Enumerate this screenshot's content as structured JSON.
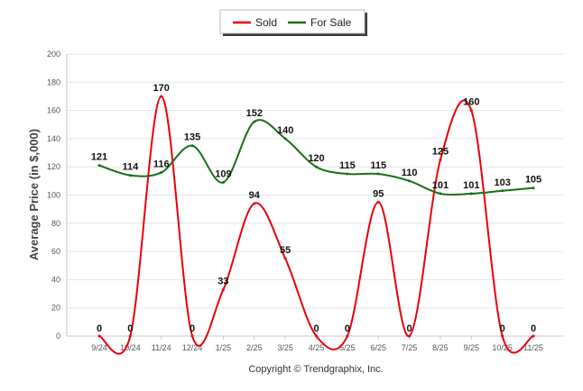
{
  "chart_data": {
    "type": "line",
    "categories": [
      "9/24",
      "10/24",
      "11/24",
      "12/24",
      "1/25",
      "2/25",
      "3/25",
      "4/25",
      "5/25",
      "6/25",
      "7/25",
      "8/25",
      "9/25",
      "10/25",
      "11/25"
    ],
    "series": [
      {
        "name": "Sold",
        "color": "#e8000b",
        "values": [
          0,
          0,
          170,
          0,
          33,
          94,
          55,
          0,
          0,
          95,
          0,
          125,
          160,
          0,
          0
        ]
      },
      {
        "name": "For Sale",
        "color": "#1a6e1a",
        "values": [
          121,
          114,
          116,
          135,
          109,
          152,
          140,
          120,
          115,
          115,
          110,
          101,
          101,
          103,
          105
        ]
      }
    ],
    "ylabel": "Average Price (in $,000)",
    "xlabel": "",
    "ylim": [
      0,
      200
    ],
    "yticks": [
      "0",
      "20",
      "40",
      "60",
      "80",
      "100",
      "120",
      "140",
      "160",
      "180",
      "200"
    ],
    "grid": true,
    "legend_position": "top-center"
  },
  "footer": "Copyright © Trendgraphix, Inc."
}
